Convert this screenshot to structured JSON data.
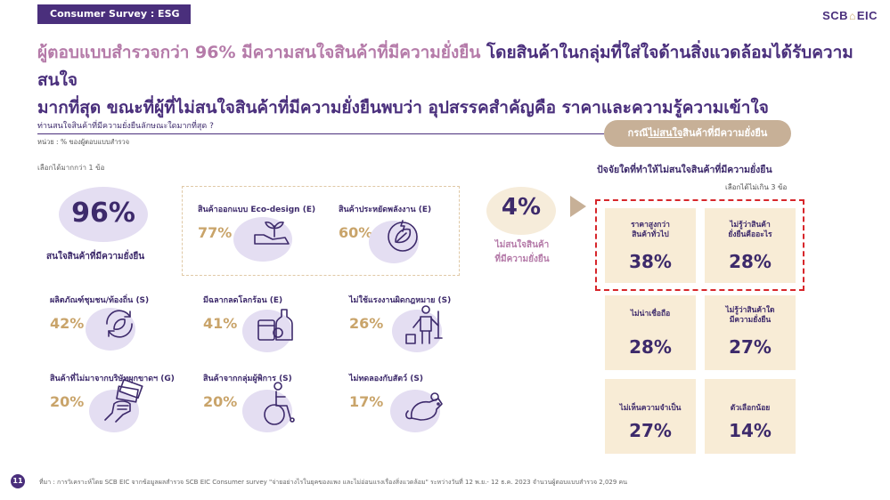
{
  "header": {
    "tag": "Consumer Survey : ESG",
    "logo_left": "SCB",
    "logo_right": "EIC"
  },
  "headline": {
    "part1": "ผู้ตอบแบบสำรวจกว่า 96% มีความสนใจสินค้าที่มีความยั่งยืน",
    "part2": " โดยสินค้าในกลุ่มที่ใส่ใจด้านสิ่งแวดล้อมได้รับความสนใจ",
    "line2": "มากที่สุด ขณะที่ผู้ที่ไม่สนใจสินค้าที่มีความยั่งยืนพบว่า อุปสรรคสำคัญคือ ราคาและความรู้ความเข้าใจ"
  },
  "question": {
    "title": "ท่านสนใจสินค้าที่มีความยั่งยืนลักษณะใดมากที่สุด ?",
    "unit": "หน่วย : % ของผู้ตอบแบบสำรวจ",
    "multi": "เลือกได้มากกว่า 1 ข้อ"
  },
  "interested": {
    "pct": "96%",
    "label": "สนใจสินค้าที่มีความยั่งยืน"
  },
  "items": [
    {
      "title": "สินค้าออกแบบ Eco-design (E)",
      "pct": "77%",
      "icon": "hand-plant-icon"
    },
    {
      "title": "สินค้าประหยัดพลังงาน (E)",
      "pct": "60%",
      "icon": "energy-leaf-icon"
    },
    {
      "title": "ผลิตภัณฑ์ชุมชน/ท้องถิ่น (S)",
      "pct": "42%",
      "icon": "recycle-leaf-icon"
    },
    {
      "title": "มีฉลากลดโลกร้อน (E)",
      "pct": "41%",
      "icon": "bottles-icon"
    },
    {
      "title": "ไม่ใช้แรงงานผิดกฎหมาย (S)",
      "pct": "26%",
      "icon": "worker-icon"
    },
    {
      "title": "สินค้าที่ไม่มาจากบริษัทผูกขาดฯ (G)",
      "pct": "20%",
      "icon": "hand-money-icon"
    },
    {
      "title": "สินค้าจากกลุ่มผู้พิการ (S)",
      "pct": "20%",
      "icon": "wheelchair-icon"
    },
    {
      "title": "ไม่ทดลองกับสัตว์ (S)",
      "pct": "17%",
      "icon": "mouse-icon"
    }
  ],
  "not_interested": {
    "pct": "4%",
    "line1": "ไม่สนใจสินค้า",
    "line2": "ที่มีความยั่งยืน"
  },
  "case": {
    "pre": "กรณี",
    "u": "ไม่สนใจ",
    "post": "สินค้าที่มีความยั่งยืน"
  },
  "factors": {
    "title": "ปัจจัยใดที่ทำให้ไม่สนใจสินค้าที่มีความยั่งยืน",
    "sub": "เลือกได้ไม่เกิน 3 ข้อ",
    "cards": [
      {
        "line1": "ราคาสูงกว่า",
        "line2": "สินค้าทั่วไป",
        "pct": "38%"
      },
      {
        "line1": "ไม่รู้ว่าสินค้า",
        "line2": "ยั่งยืนคืออะไร",
        "pct": "28%"
      },
      {
        "line1": "ไม่น่าเชื่อถือ",
        "line2": "",
        "pct": "28%"
      },
      {
        "line1": "ไม่รู้ว่าสินค้าใด",
        "line2": "มีความยั่งยืน",
        "pct": "27%"
      },
      {
        "line1": "ไม่เห็นความจำเป็น",
        "line2": "",
        "pct": "27%"
      },
      {
        "line1": "ตัวเลือกน้อย",
        "line2": "",
        "pct": "14%"
      }
    ]
  },
  "footer": {
    "page": "11",
    "source": "ที่มา : การวิเคราะห์โดย SCB EIC จากข้อมูลผลสำรวจ SCB EIC Consumer survey \"จ่ายอย่างไรในยุคของแพง และไม่อ่อนแรงเรื่องสิ่งแวดล้อม\" ระหว่างวันที่ 12 พ.ย.- 12 ธ.ค. 2023 จำนวนผู้ตอบแบบสำรวจ 2,029 คน"
  },
  "colors": {
    "purple": "#4a2f7c",
    "gold": "#c9a46a",
    "lilac": "#e4def2",
    "cream": "#f8ecd6",
    "red": "#d7262b",
    "pink": "#b57ba9"
  }
}
